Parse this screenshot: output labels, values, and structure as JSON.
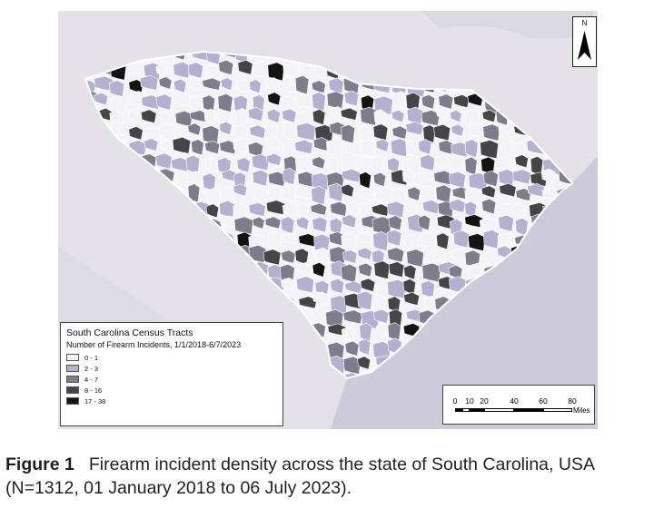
{
  "north_arrow": {
    "letter": "N",
    "icon": "north-arrow-icon"
  },
  "legend": {
    "title": "South Carolina Census Tracts",
    "subtitle": "Number of Firearm Incidents, 1/1/2018-6/7/2023",
    "classes": [
      {
        "label": "0 - 1",
        "color": "#f4f3f7"
      },
      {
        "label": "2 - 3",
        "color": "#b3b1cf"
      },
      {
        "label": "4 - 7",
        "color": "#7e7d8b"
      },
      {
        "label": "8 - 16",
        "color": "#454448"
      },
      {
        "label": "17 - 38",
        "color": "#141414"
      }
    ]
  },
  "scale_bar": {
    "ticks": [
      "0",
      "10",
      "20",
      "40",
      "60",
      "80"
    ],
    "unit": "Miles"
  },
  "caption": {
    "label": "Figure 1",
    "text": "Firearm incident density across the state of South Carolina, USA (N=1312, 01 January 2018 to 06 July 2023)."
  },
  "colors": {
    "background_land": "#e4e2e7",
    "ocean": "#cdcbd9",
    "state_border": "#ffffff"
  }
}
